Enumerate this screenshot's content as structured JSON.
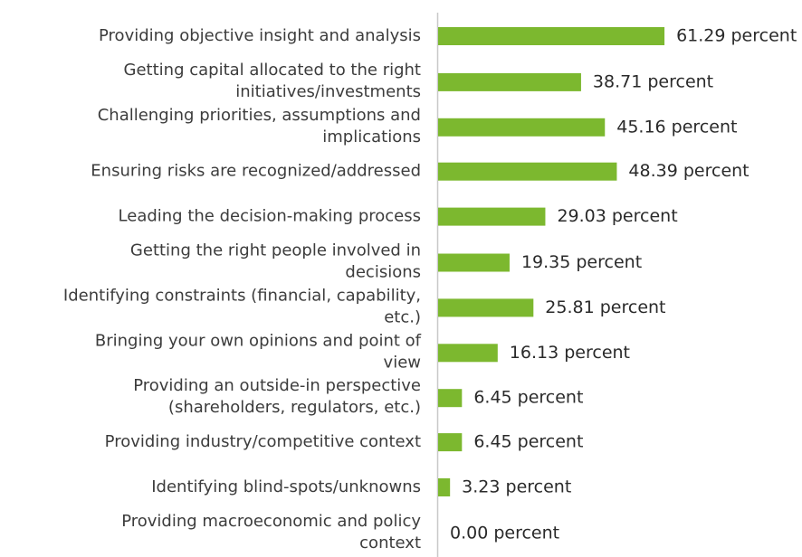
{
  "chart_data": {
    "type": "bar",
    "orientation": "horizontal",
    "categories": [
      [
        "Providing objective insight and analysis"
      ],
      [
        "Getting capital allocated to the right",
        "initiatives/investments"
      ],
      [
        "Challenging priorities, assumptions and",
        "implications"
      ],
      [
        "Ensuring risks are recognized/addressed"
      ],
      [
        "Leading the decision-making process"
      ],
      [
        "Getting the right people involved in",
        "decisions"
      ],
      [
        "Identifying constraints (financial, capability,",
        "etc.)"
      ],
      [
        "Bringing your own opinions and point of",
        "view"
      ],
      [
        "Providing an outside-in perspective",
        "(shareholders, regulators, etc.)"
      ],
      [
        "Providing industry/competitive context"
      ],
      [
        "Identifying blind-spots/unknowns"
      ],
      [
        "Providing macroeconomic and policy",
        "context"
      ]
    ],
    "values": [
      61.29,
      38.71,
      45.16,
      48.39,
      29.03,
      19.35,
      25.81,
      16.13,
      6.45,
      6.45,
      3.23,
      0.0
    ],
    "value_labels": [
      "61.29 percent",
      "38.71 percent",
      "45.16 percent",
      "48.39 percent",
      "29.03 percent",
      "19.35 percent",
      "25.81 percent",
      "16.13 percent",
      "6.45 percent",
      "6.45 percent",
      "3.23 percent",
      "0.00 percent"
    ],
    "xlim": [
      0,
      100
    ],
    "title": "",
    "xlabel": "",
    "ylabel": "",
    "grid": false,
    "legend": "none",
    "colors": {
      "bar": "#7cb82f",
      "axis": "#c8c8c8",
      "category_text": "#3c3c3c",
      "value_text": "#2a2a2a"
    }
  }
}
